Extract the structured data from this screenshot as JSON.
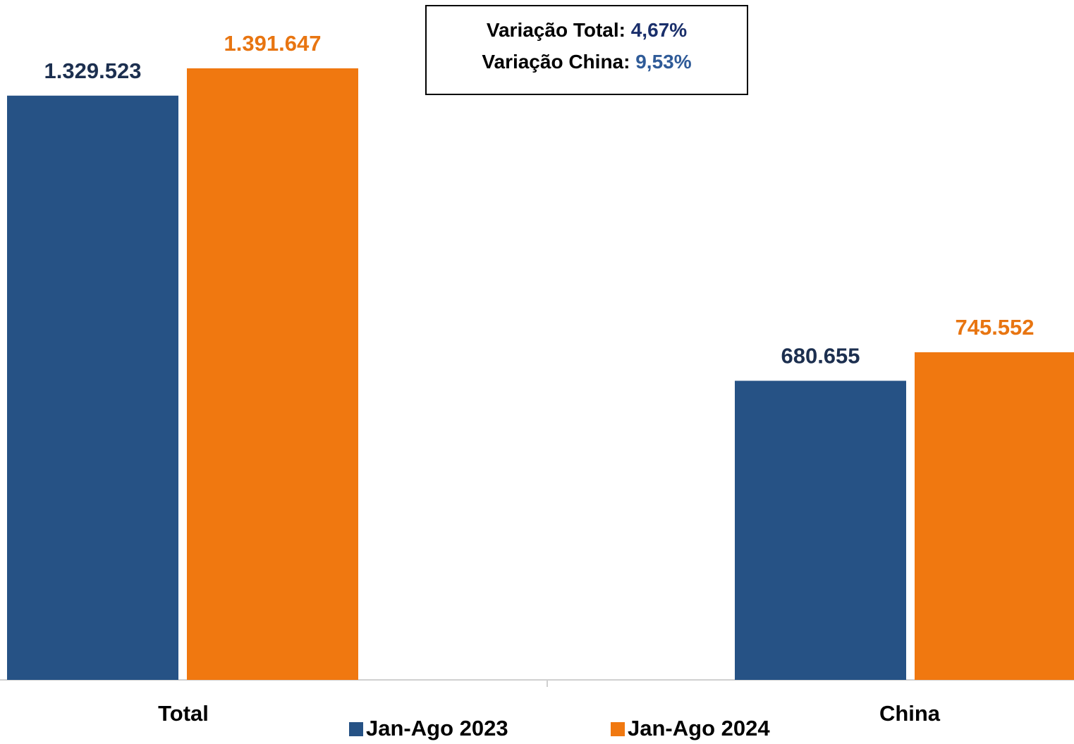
{
  "chart_data": {
    "type": "bar",
    "categories": [
      "Total",
      "China"
    ],
    "series": [
      {
        "name": "Jan-Ago 2023",
        "color": "#265285",
        "label_color": "#1c2f4f",
        "values": [
          1329523,
          680655
        ],
        "value_labels": [
          "1.329.523",
          "680.655"
        ]
      },
      {
        "name": "Jan-Ago 2024",
        "color": "#f07810",
        "label_color": "#e87511",
        "values": [
          1391647,
          745552
        ],
        "value_labels": [
          "1.391.647",
          "745.552"
        ]
      }
    ],
    "annotations": [
      {
        "label": "Variação Total:",
        "value": "4,67%",
        "color": "#1a2f6b"
      },
      {
        "label": "Variação China:",
        "value": "9,53%",
        "color": "#2f5b98"
      }
    ],
    "legend": "bottom"
  }
}
